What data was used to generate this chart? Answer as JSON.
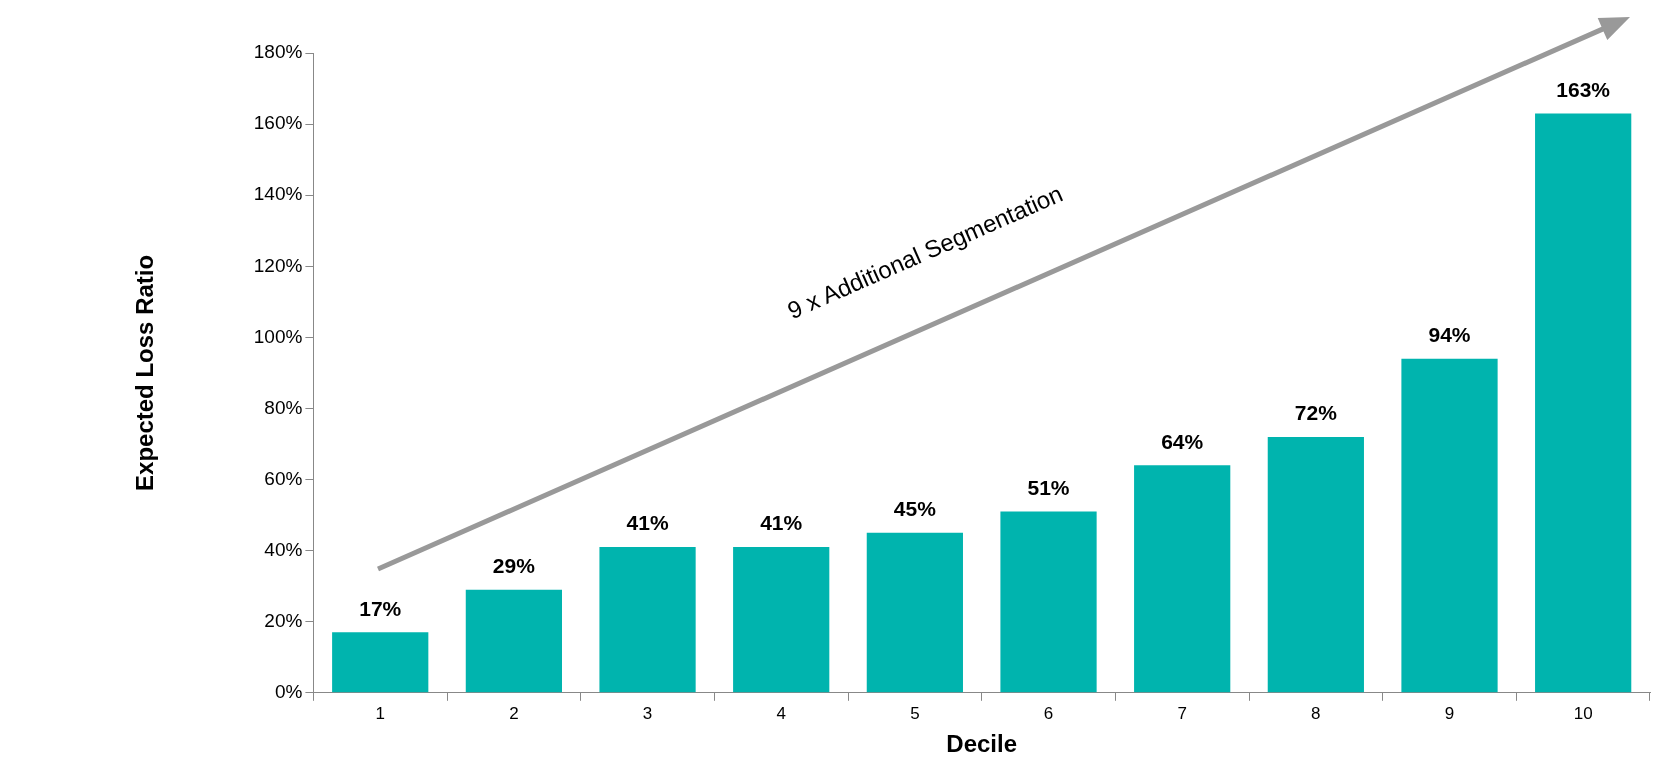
{
  "chart_data": {
    "type": "bar",
    "xlabel": "Decile",
    "ylabel": "Expected Loss Ratio",
    "categories": [
      "1",
      "2",
      "3",
      "4",
      "5",
      "6",
      "7",
      "8",
      "9",
      "10"
    ],
    "values": [
      17,
      29,
      41,
      41,
      45,
      51,
      64,
      72,
      94,
      163
    ],
    "value_labels": [
      "17%",
      "29%",
      "41%",
      "41%",
      "45%",
      "51%",
      "64%",
      "72%",
      "94%",
      "163%"
    ],
    "color": "#00b4ae",
    "ylim": [
      0,
      180
    ],
    "yticks": [
      {
        "value": 0,
        "label": "0%"
      },
      {
        "value": 20,
        "label": "20%"
      },
      {
        "value": 40,
        "label": "40%"
      },
      {
        "value": 60,
        "label": "60%"
      },
      {
        "value": 80,
        "label": "80%"
      },
      {
        "value": 100,
        "label": "100%"
      },
      {
        "value": 120,
        "label": "120%"
      },
      {
        "value": 140,
        "label": "140%"
      },
      {
        "value": 160,
        "label": "160%"
      },
      {
        "value": 180,
        "label": "180%"
      }
    ],
    "grid": false,
    "legend": false,
    "annotations": [
      "9 x Additional Segmentation"
    ]
  }
}
